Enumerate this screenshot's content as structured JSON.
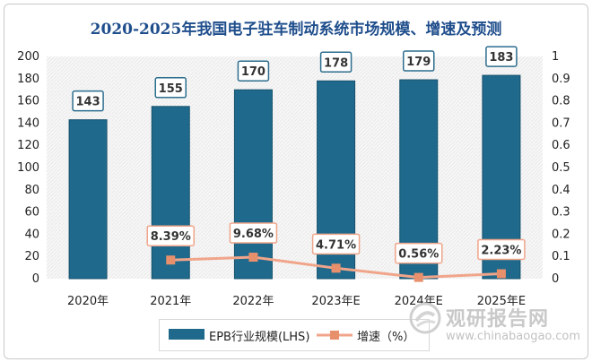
{
  "chart_data": {
    "type": "bar",
    "title": "2020-2025年我国电子驻车制动系统市场规模、增速及预测",
    "categories": [
      "2020年",
      "2021年",
      "2022年",
      "2023年E",
      "2024年E",
      "2025年E"
    ],
    "series": [
      {
        "name": "EPB行业规模(LHS)",
        "type": "bar",
        "axis": "left",
        "values": [
          143,
          155,
          170,
          178,
          179,
          183
        ],
        "labels": [
          "143",
          "155",
          "170",
          "178",
          "179",
          "183"
        ]
      },
      {
        "name": "增速（%）",
        "type": "line",
        "axis": "right",
        "values": [
          null,
          0.0839,
          0.0968,
          0.0471,
          0.0056,
          0.0223
        ],
        "labels": [
          "",
          "8.39%",
          "9.68%",
          "4.71%",
          "0.56%",
          "2.23%"
        ]
      }
    ],
    "y_left": {
      "min": 0,
      "max": 200,
      "ticks": [
        "0",
        "20",
        "40",
        "60",
        "80",
        "100",
        "120",
        "140",
        "160",
        "180",
        "200"
      ]
    },
    "y_right": {
      "min": 0,
      "max": 1,
      "ticks": [
        "0",
        "0.1",
        "0.2",
        "0.3",
        "0.4",
        "0.5",
        "0.6",
        "0.7",
        "0.8",
        "0.9",
        "1"
      ]
    },
    "legend_position": "bottom",
    "colors": {
      "bar": "#1f6a8c",
      "line": "#f0a58a",
      "marker": "#e8906c",
      "title": "#1f4e8c"
    }
  },
  "legend": {
    "bar_label": "EPB行业规模(LHS)",
    "line_label": "增速（%）"
  },
  "watermark": {
    "cn": "观研报告网",
    "url": "www.chinabaogao.com"
  }
}
